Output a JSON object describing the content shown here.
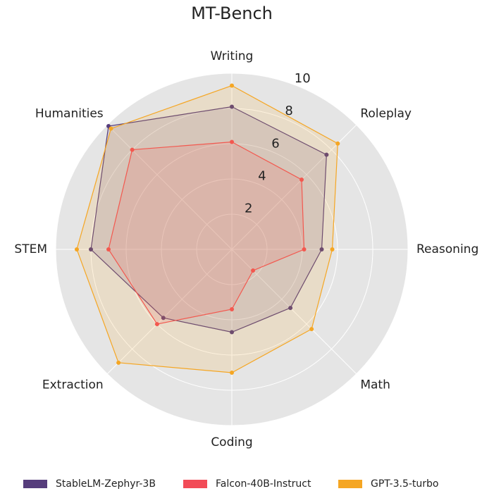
{
  "chart_data": {
    "type": "radar",
    "title": "MT-Bench",
    "categories": [
      "Writing",
      "Roleplay",
      "Reasoning",
      "Math",
      "Coding",
      "Extraction",
      "STEM",
      "Humanities"
    ],
    "ylim": [
      0,
      10
    ],
    "yticks": [
      2,
      4,
      6,
      8,
      10
    ],
    "grid": true,
    "legend": "bottom",
    "series": [
      {
        "name": "StableLM-Zephyr-3B",
        "color": "#563d7c",
        "values": [
          8.1,
          7.6,
          5.1,
          4.7,
          4.7,
          5.5,
          8.0,
          9.9
        ]
      },
      {
        "name": "Falcon-40B-Instruct",
        "color": "#f24b57",
        "values": [
          6.1,
          5.6,
          4.1,
          1.7,
          3.4,
          6.0,
          7.0,
          8.0
        ]
      },
      {
        "name": "GPT-3.5-turbo",
        "color": "#f5a623",
        "values": [
          9.3,
          8.5,
          5.7,
          6.4,
          7.0,
          9.1,
          8.8,
          9.7
        ]
      }
    ]
  }
}
